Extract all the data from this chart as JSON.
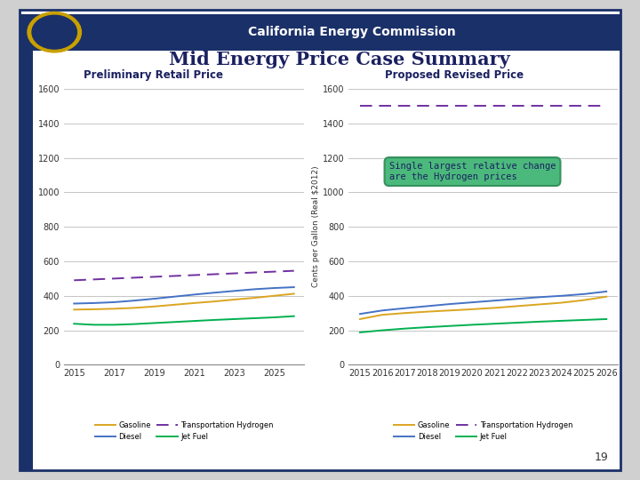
{
  "title": "Mid Energy Price Case Summary",
  "header_text": "California Energy Commission",
  "header_bg": "#1a3068",
  "slide_bg": "#ffffff",
  "slide_border": "#1a3068",
  "left_title": "Preliminary Retail Price",
  "right_title": "Proposed Revised Price",
  "ylabel": "Cents per Gallon (Real $2012)",
  "ylim": [
    0,
    1600
  ],
  "yticks": [
    0,
    200,
    400,
    600,
    800,
    1000,
    1200,
    1400,
    1600
  ],
  "left_xlim": [
    2014.5,
    2026.5
  ],
  "left_xticks": [
    2015,
    2017,
    2019,
    2021,
    2023,
    2025
  ],
  "right_xlim": [
    2014.5,
    2026.5
  ],
  "right_xticks": [
    2015,
    2016,
    2017,
    2018,
    2019,
    2020,
    2021,
    2022,
    2023,
    2024,
    2025,
    2026
  ],
  "left_gasoline": [
    320,
    322,
    325,
    330,
    338,
    348,
    358,
    367,
    378,
    388,
    400,
    412
  ],
  "left_diesel": [
    355,
    358,
    363,
    372,
    383,
    395,
    407,
    418,
    428,
    438,
    445,
    450
  ],
  "left_hydrogen": [
    490,
    495,
    500,
    505,
    510,
    515,
    520,
    525,
    530,
    535,
    540,
    545
  ],
  "left_jetfuel": [
    238,
    232,
    232,
    236,
    242,
    248,
    254,
    260,
    265,
    270,
    275,
    282
  ],
  "right_gasoline": [
    265,
    290,
    300,
    308,
    315,
    322,
    330,
    340,
    350,
    360,
    375,
    395
  ],
  "right_diesel": [
    295,
    315,
    328,
    340,
    352,
    362,
    372,
    382,
    392,
    400,
    410,
    425
  ],
  "right_hydrogen": [
    1500,
    1500,
    1500,
    1500,
    1500,
    1500,
    1500,
    1500,
    1500,
    1500,
    1500,
    1500
  ],
  "right_jetfuel": [
    188,
    200,
    210,
    218,
    225,
    232,
    238,
    244,
    250,
    255,
    260,
    265
  ],
  "years": [
    2015,
    2016,
    2017,
    2018,
    2019,
    2020,
    2021,
    2022,
    2023,
    2024,
    2025,
    2026
  ],
  "color_gasoline": "#DAA520",
  "color_diesel": "#4472C4",
  "color_hydrogen": "#7030A0",
  "color_jetfuel": "#00B050",
  "annotation_text": "Single largest relative change\nare the Hydrogen prices",
  "annotation_bg": "#3CB371",
  "annotation_border": "#2e8b57",
  "page_number": "19",
  "gridline_color": "#BBBBBB",
  "plot_bg": "#ffffff"
}
